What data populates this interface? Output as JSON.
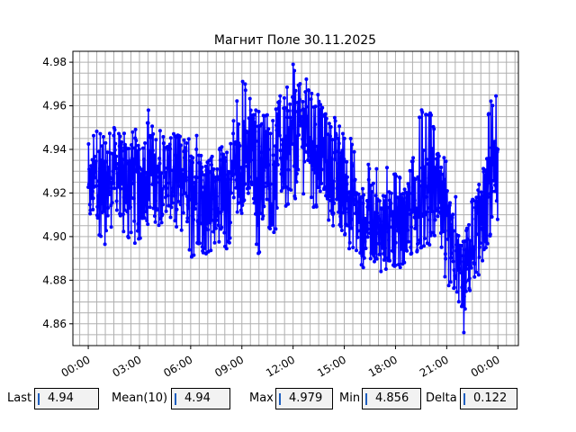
{
  "chart_data": {
    "type": "line",
    "title": "Магнит Поле 30.11.2025",
    "xlabel": "",
    "ylabel": "",
    "x_unit": "hours",
    "xlim": [
      -0.9,
      25.2
    ],
    "ylim": [
      4.85,
      4.985
    ],
    "x_ticks": [
      {
        "x": 0,
        "label": "00:00"
      },
      {
        "x": 3,
        "label": "03:00"
      },
      {
        "x": 6,
        "label": "06:00"
      },
      {
        "x": 9,
        "label": "09:00"
      },
      {
        "x": 12,
        "label": "12:00"
      },
      {
        "x": 15,
        "label": "15:00"
      },
      {
        "x": 18,
        "label": "18:00"
      },
      {
        "x": 21,
        "label": "21:00"
      },
      {
        "x": 24,
        "label": "00:00"
      }
    ],
    "y_ticks": [
      {
        "y": 4.86,
        "label": "4.86"
      },
      {
        "y": 4.88,
        "label": "4.88"
      },
      {
        "y": 4.9,
        "label": "4.90"
      },
      {
        "y": 4.92,
        "label": "4.92"
      },
      {
        "y": 4.94,
        "label": "4.94"
      },
      {
        "y": 4.96,
        "label": "4.96"
      },
      {
        "y": 4.98,
        "label": "4.98"
      }
    ],
    "grid": true,
    "series": [
      {
        "name": "",
        "color": "#0000ff",
        "marker": "circle",
        "x": [
          0,
          0.5,
          1,
          1.5,
          2,
          2.5,
          3,
          3.5,
          4,
          4.5,
          5,
          5.5,
          6,
          6.5,
          7,
          7.5,
          8,
          8.5,
          9,
          9.5,
          10,
          10.5,
          11,
          11.5,
          12,
          12.5,
          13,
          13.5,
          14,
          14.5,
          15,
          15.5,
          16,
          16.5,
          17,
          17.5,
          18,
          18.5,
          19,
          19.5,
          20,
          20.5,
          21,
          21.5,
          22,
          22.5,
          23,
          23.5,
          24
        ],
        "y": [
          4.918,
          4.928,
          4.92,
          4.932,
          4.925,
          4.93,
          4.92,
          4.935,
          4.922,
          4.93,
          4.925,
          4.928,
          4.92,
          4.926,
          4.915,
          4.922,
          4.918,
          4.93,
          4.935,
          4.94,
          4.928,
          4.938,
          4.935,
          4.94,
          4.945,
          4.95,
          4.948,
          4.942,
          4.935,
          4.928,
          4.92,
          4.915,
          4.905,
          4.91,
          4.902,
          4.905,
          4.9,
          4.905,
          4.91,
          4.915,
          4.92,
          4.918,
          4.9,
          4.89,
          4.88,
          4.895,
          4.91,
          4.918,
          4.925
        ],
        "min": [
          4.905,
          4.9,
          4.895,
          4.905,
          4.9,
          4.898,
          4.895,
          4.905,
          4.9,
          4.905,
          4.9,
          4.902,
          4.888,
          4.895,
          4.89,
          4.895,
          4.892,
          4.9,
          4.91,
          4.912,
          4.89,
          4.905,
          4.9,
          4.91,
          4.915,
          4.92,
          4.915,
          4.91,
          4.905,
          4.9,
          4.895,
          4.89,
          4.885,
          4.888,
          4.88,
          4.885,
          4.885,
          4.885,
          4.89,
          4.895,
          4.895,
          4.89,
          4.875,
          4.875,
          4.856,
          4.87,
          4.885,
          4.9,
          4.905
        ],
        "max": [
          4.945,
          4.95,
          4.945,
          4.955,
          4.948,
          4.955,
          4.95,
          4.96,
          4.945,
          4.955,
          4.95,
          4.948,
          4.945,
          4.95,
          4.935,
          4.945,
          4.94,
          4.955,
          4.975,
          4.965,
          4.96,
          4.962,
          4.965,
          4.965,
          4.979,
          4.975,
          4.97,
          4.965,
          4.958,
          4.955,
          4.948,
          4.945,
          4.93,
          4.935,
          4.93,
          4.935,
          4.93,
          4.93,
          4.935,
          4.96,
          4.958,
          4.945,
          4.935,
          4.92,
          4.9,
          4.92,
          4.935,
          4.962,
          4.966
        ]
      }
    ]
  },
  "stats": {
    "last": {
      "label": "Last",
      "value": "4.94"
    },
    "mean": {
      "label": "Mean(10)",
      "value": "4.94"
    },
    "max": {
      "label": "Max",
      "value": "4.979"
    },
    "min": {
      "label": "Min",
      "value": "4.856"
    },
    "delta": {
      "label": "Delta",
      "value": "0.122"
    }
  }
}
